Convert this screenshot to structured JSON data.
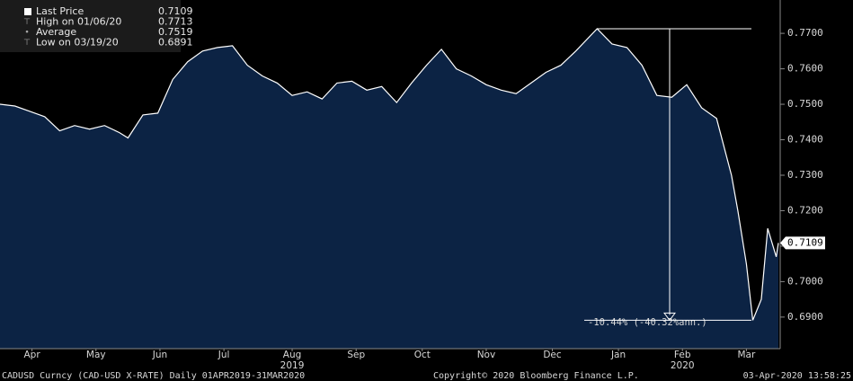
{
  "chart_data": {
    "type": "area",
    "footer": [
      "CADUSD Curncy (CAD-USD X-RATE)  Daily 01APR2019-31MAR2020",
      "Copyright© 2020 Bloomberg Finance L.P.",
      "03-Apr-2020 13:58:25"
    ],
    "legend": [
      {
        "label": "Last Price",
        "value": 0.7109
      },
      {
        "label": "High on 01/06/20",
        "value": 0.7713
      },
      {
        "label": "Average",
        "value": 0.7519
      },
      {
        "label": "Low on 03/19/20",
        "value": 0.6891
      }
    ],
    "high_date": "2020-01-06",
    "low_date": "2020-03-19",
    "annotations": [
      "-10.44% (-40.32%ann.)"
    ],
    "years": [
      {
        "value": "2019-08-16",
        "label": "2019"
      },
      {
        "value": "2020-02-15",
        "label": "2020"
      }
    ],
    "x": [
      "2019-04-01",
      "2019-04-08",
      "2019-04-15",
      "2019-04-22",
      "2019-04-29",
      "2019-05-06",
      "2019-05-13",
      "2019-05-20",
      "2019-05-27",
      "2019-05-31",
      "2019-06-07",
      "2019-06-14",
      "2019-06-21",
      "2019-06-28",
      "2019-07-05",
      "2019-07-12",
      "2019-07-19",
      "2019-07-26",
      "2019-08-02",
      "2019-08-09",
      "2019-08-16",
      "2019-08-23",
      "2019-08-30",
      "2019-09-06",
      "2019-09-13",
      "2019-09-20",
      "2019-09-27",
      "2019-10-04",
      "2019-10-11",
      "2019-10-18",
      "2019-10-25",
      "2019-11-01",
      "2019-11-08",
      "2019-11-15",
      "2019-11-22",
      "2019-11-29",
      "2019-12-06",
      "2019-12-13",
      "2019-12-20",
      "2019-12-27",
      "2020-01-06",
      "2020-01-13",
      "2020-01-20",
      "2020-01-27",
      "2020-02-03",
      "2020-02-10",
      "2020-02-17",
      "2020-02-24",
      "2020-03-02",
      "2020-03-09",
      "2020-03-12",
      "2020-03-16",
      "2020-03-19",
      "2020-03-23",
      "2020-03-26",
      "2020-03-30",
      "2020-03-31"
    ],
    "series": [
      {
        "name": "Last Price",
        "color": "#ffffff",
        "fill": "#0c2344",
        "values": [
          0.75,
          0.7495,
          0.748,
          0.7465,
          0.7425,
          0.744,
          0.743,
          0.744,
          0.742,
          0.7405,
          0.747,
          0.7475,
          0.757,
          0.762,
          0.765,
          0.766,
          0.7665,
          0.761,
          0.758,
          0.756,
          0.7525,
          0.7535,
          0.7515,
          0.756,
          0.7565,
          0.754,
          0.755,
          0.7505,
          0.756,
          0.761,
          0.7655,
          0.76,
          0.758,
          0.7555,
          0.754,
          0.753,
          0.756,
          0.759,
          0.761,
          0.765,
          0.7713,
          0.767,
          0.766,
          0.761,
          0.7525,
          0.752,
          0.7555,
          0.749,
          0.746,
          0.73,
          0.72,
          0.705,
          0.6891,
          0.695,
          0.715,
          0.707,
          0.7109
        ]
      }
    ],
    "xlim": [
      "2019-04-01",
      "2020-03-31"
    ],
    "xticks": [
      {
        "value": "2019-04-16",
        "label": "Apr"
      },
      {
        "value": "2019-05-16",
        "label": "May"
      },
      {
        "value": "2019-06-15",
        "label": "Jun"
      },
      {
        "value": "2019-07-15",
        "label": "Jul"
      },
      {
        "value": "2019-08-16",
        "label": "Aug"
      },
      {
        "value": "2019-09-15",
        "label": "Sep"
      },
      {
        "value": "2019-10-16",
        "label": "Oct"
      },
      {
        "value": "2019-11-15",
        "label": "Nov"
      },
      {
        "value": "2019-12-16",
        "label": "Dec"
      },
      {
        "value": "2020-01-16",
        "label": "Jan"
      },
      {
        "value": "2020-02-15",
        "label": "Feb"
      },
      {
        "value": "2020-03-16",
        "label": "Mar"
      }
    ],
    "ylim": [
      0.6811,
      0.7794
    ],
    "yticks": [
      {
        "value": 0.69,
        "label": "0.6900"
      },
      {
        "value": 0.7,
        "label": "0.7000"
      },
      {
        "value": 0.71,
        "label": "0.7100"
      },
      {
        "value": 0.72,
        "label": "0.7200"
      },
      {
        "value": 0.73,
        "label": "0.7300"
      },
      {
        "value": 0.74,
        "label": "0.7400"
      },
      {
        "value": 0.75,
        "label": "0.7500"
      },
      {
        "value": 0.76,
        "label": "0.7600"
      },
      {
        "value": 0.77,
        "label": "0.7700"
      }
    ]
  }
}
